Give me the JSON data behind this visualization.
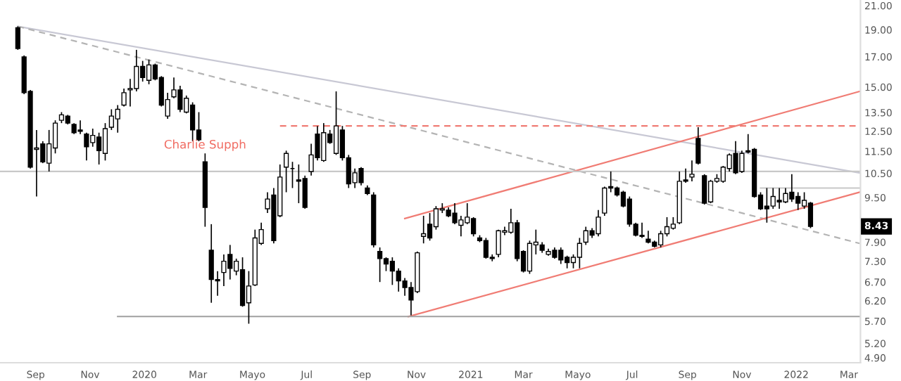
{
  "chart_data": {
    "type": "candlestick",
    "color": "#000000",
    "x": [
      "2019-08-12",
      "2019-08-19",
      "2019-08-26",
      "2019-09-02",
      "2019-09-09",
      "2019-09-16",
      "2019-09-23",
      "2019-09-30",
      "2019-10-07",
      "2019-10-14",
      "2019-10-21",
      "2019-10-28",
      "2019-11-04",
      "2019-11-11",
      "2019-11-18",
      "2019-11-25",
      "2019-12-02",
      "2019-12-09",
      "2019-12-16",
      "2019-12-23",
      "2019-12-30",
      "2020-01-06",
      "2020-01-13",
      "2020-01-20",
      "2020-01-27",
      "2020-02-03",
      "2020-02-10",
      "2020-02-17",
      "2020-02-24",
      "2020-03-02",
      "2020-03-09",
      "2020-03-16",
      "2020-03-23",
      "2020-03-30",
      "2020-04-06",
      "2020-04-13",
      "2020-04-20",
      "2020-04-27",
      "2020-05-04",
      "2020-05-11",
      "2020-05-18",
      "2020-05-25",
      "2020-06-01",
      "2020-06-08",
      "2020-06-15",
      "2020-06-22",
      "2020-06-29",
      "2020-07-06",
      "2020-07-13",
      "2020-07-20",
      "2020-07-27",
      "2020-08-03",
      "2020-08-10",
      "2020-08-17",
      "2020-08-24",
      "2020-08-31",
      "2020-09-07",
      "2020-09-14",
      "2020-09-21",
      "2020-09-28",
      "2020-10-05",
      "2020-10-12",
      "2020-10-19",
      "2020-10-26",
      "2020-11-02",
      "2020-11-09",
      "2020-11-16",
      "2020-11-23",
      "2020-11-30",
      "2020-12-07",
      "2020-12-14",
      "2020-12-21",
      "2020-12-28",
      "2021-01-04",
      "2021-01-11",
      "2021-01-18",
      "2021-01-25",
      "2021-02-01",
      "2021-02-08",
      "2021-02-15",
      "2021-02-22",
      "2021-03-01",
      "2021-03-08",
      "2021-03-15",
      "2021-03-22",
      "2021-03-29",
      "2021-04-05",
      "2021-04-12",
      "2021-04-19",
      "2021-04-26",
      "2021-05-03",
      "2021-05-10",
      "2021-05-17",
      "2021-05-24",
      "2021-05-31",
      "2021-06-07",
      "2021-06-14",
      "2021-06-21",
      "2021-06-28",
      "2021-07-05",
      "2021-07-12",
      "2021-07-19",
      "2021-07-26",
      "2021-08-02",
      "2021-08-09",
      "2021-08-16",
      "2021-08-23",
      "2021-08-30",
      "2021-09-06",
      "2021-09-13",
      "2021-09-20",
      "2021-09-27",
      "2021-10-04",
      "2021-10-11",
      "2021-10-18",
      "2021-10-25",
      "2021-11-01",
      "2021-11-08",
      "2021-11-15",
      "2021-11-22",
      "2021-11-29",
      "2021-12-06",
      "2021-12-13",
      "2021-12-20",
      "2021-12-27",
      "2022-01-03",
      "2022-01-10",
      "2022-01-17"
    ],
    "ohlc": [
      [
        19.16,
        19.27,
        17.49,
        17.59
      ],
      [
        16.99,
        17.09,
        14.56,
        14.65
      ],
      [
        14.73,
        14.82,
        10.71,
        10.77
      ],
      [
        11.59,
        12.56,
        9.54,
        11.66
      ],
      [
        11.86,
        11.99,
        10.95,
        11.01
      ],
      [
        10.95,
        12.56,
        10.58,
        11.86
      ],
      [
        11.66,
        13.07,
        11.4,
        12.92
      ],
      [
        13.07,
        13.52,
        12.92,
        13.37
      ],
      [
        13.3,
        13.37,
        12.85,
        12.92
      ],
      [
        12.85,
        12.92,
        12.35,
        12.42
      ],
      [
        12.56,
        13.07,
        12.35,
        12.49
      ],
      [
        12.35,
        12.42,
        11.07,
        11.72
      ],
      [
        11.92,
        12.63,
        11.72,
        12.28
      ],
      [
        12.2,
        12.42,
        10.89,
        11.53
      ],
      [
        11.4,
        12.92,
        11.07,
        12.63
      ],
      [
        12.7,
        13.68,
        12.56,
        13.3
      ],
      [
        13.15,
        13.92,
        12.42,
        13.68
      ],
      [
        13.92,
        14.9,
        13.84,
        14.65
      ],
      [
        14.82,
        15.51,
        13.84,
        14.9
      ],
      [
        14.9,
        17.49,
        14.73,
        16.33
      ],
      [
        16.33,
        16.71,
        15.34,
        15.6
      ],
      [
        15.42,
        16.8,
        15.17,
        16.43
      ],
      [
        16.43,
        16.52,
        15.42,
        15.51
      ],
      [
        15.6,
        15.69,
        13.84,
        13.92
      ],
      [
        13.3,
        14.65,
        13.15,
        14.24
      ],
      [
        14.4,
        15.6,
        14.32,
        14.82
      ],
      [
        14.82,
        15.08,
        13.52,
        13.68
      ],
      [
        13.52,
        14.48,
        13.45,
        14.32
      ],
      [
        13.92,
        14.08,
        11.99,
        12.56
      ],
      [
        12.56,
        13.52,
        11.99,
        12.06
      ],
      [
        11.01,
        11.4,
        8.42,
        9.12
      ],
      [
        7.64,
        8.51,
        6.15,
        6.77
      ],
      [
        6.77,
        7.01,
        6.33,
        6.73
      ],
      [
        6.97,
        7.51,
        6.59,
        7.3
      ],
      [
        7.51,
        7.81,
        6.77,
        7.09
      ],
      [
        7.01,
        7.38,
        6.89,
        7.3
      ],
      [
        7.05,
        7.42,
        6.05,
        6.08
      ],
      [
        6.15,
        7.01,
        5.64,
        6.59
      ],
      [
        6.62,
        8.32,
        6.59,
        8.04
      ],
      [
        7.86,
        8.56,
        7.81,
        8.32
      ],
      [
        9.07,
        9.71,
        8.91,
        9.44
      ],
      [
        9.6,
        9.88,
        7.86,
        7.95
      ],
      [
        8.81,
        10.89,
        8.76,
        10.34
      ],
      [
        10.77,
        11.53,
        9.71,
        11.4
      ],
      [
        10.71,
        11.01,
        9.88,
        10.71
      ],
      [
        10.22,
        10.89,
        9.28,
        10.16
      ],
      [
        10.28,
        10.4,
        9.07,
        9.12
      ],
      [
        10.58,
        11.86,
        10.4,
        11.33
      ],
      [
        12.35,
        12.77,
        11.07,
        11.2
      ],
      [
        11.07,
        12.92,
        11.01,
        12.42
      ],
      [
        12.35,
        12.56,
        11.86,
        11.92
      ],
      [
        11.4,
        14.73,
        11.33,
        12.77
      ],
      [
        12.56,
        12.77,
        11.07,
        11.2
      ],
      [
        11.2,
        11.33,
        9.88,
        10.05
      ],
      [
        10.1,
        10.71,
        9.88,
        10.52
      ],
      [
        10.71,
        10.77,
        9.99,
        10.1
      ],
      [
        9.88,
        9.99,
        9.6,
        9.66
      ],
      [
        9.6,
        9.71,
        7.73,
        7.81
      ],
      [
        7.6,
        7.73,
        6.7,
        7.38
      ],
      [
        7.38,
        7.42,
        7.01,
        7.22
      ],
      [
        7.3,
        7.42,
        6.62,
        7.01
      ],
      [
        7.01,
        7.09,
        6.44,
        6.73
      ],
      [
        6.73,
        6.81,
        6.33,
        6.55
      ],
      [
        6.55,
        6.7,
        5.84,
        6.22
      ],
      [
        6.44,
        7.6,
        6.4,
        7.56
      ],
      [
        8.09,
        8.81,
        7.86,
        8.18
      ],
      [
        8.51,
        8.91,
        7.95,
        8.04
      ],
      [
        8.42,
        9.17,
        8.32,
        9.07
      ],
      [
        9.02,
        9.28,
        8.91,
        9.07
      ],
      [
        9.02,
        9.12,
        8.76,
        8.81
      ],
      [
        8.91,
        9.28,
        8.51,
        8.56
      ],
      [
        8.47,
        8.81,
        8.09,
        8.66
      ],
      [
        8.56,
        9.28,
        8.51,
        8.76
      ],
      [
        8.71,
        8.76,
        8.09,
        8.18
      ],
      [
        8.04,
        8.13,
        7.9,
        7.95
      ],
      [
        7.95,
        8.04,
        7.38,
        7.42
      ],
      [
        7.42,
        7.51,
        7.3,
        7.38
      ],
      [
        7.51,
        8.32,
        7.42,
        8.28
      ],
      [
        8.23,
        8.42,
        8.13,
        8.28
      ],
      [
        8.23,
        9.07,
        8.18,
        8.56
      ],
      [
        8.56,
        8.66,
        7.3,
        7.38
      ],
      [
        7.6,
        7.64,
        6.97,
        7.01
      ],
      [
        7.01,
        7.95,
        6.93,
        7.86
      ],
      [
        7.81,
        8.32,
        7.51,
        7.9
      ],
      [
        7.81,
        7.9,
        7.56,
        7.64
      ],
      [
        7.51,
        7.69,
        7.47,
        7.6
      ],
      [
        7.64,
        7.73,
        7.38,
        7.42
      ],
      [
        7.64,
        7.73,
        7.22,
        7.34
      ],
      [
        7.42,
        7.47,
        7.09,
        7.26
      ],
      [
        7.26,
        7.51,
        7.09,
        7.42
      ],
      [
        7.42,
        8.04,
        7.09,
        7.86
      ],
      [
        7.9,
        8.42,
        7.81,
        8.28
      ],
      [
        8.28,
        8.37,
        8.04,
        8.13
      ],
      [
        8.18,
        9.02,
        8.09,
        8.76
      ],
      [
        8.91,
        9.94,
        8.81,
        9.88
      ],
      [
        9.94,
        10.58,
        9.71,
        9.88
      ],
      [
        9.88,
        9.94,
        9.54,
        9.6
      ],
      [
        9.71,
        9.77,
        9.12,
        9.17
      ],
      [
        9.44,
        9.54,
        8.42,
        8.51
      ],
      [
        8.51,
        8.56,
        8.09,
        8.13
      ],
      [
        8.13,
        8.56,
        8.04,
        8.09
      ],
      [
        8.0,
        8.28,
        7.86,
        7.9
      ],
      [
        7.9,
        7.95,
        7.73,
        7.77
      ],
      [
        7.81,
        8.28,
        7.73,
        8.18
      ],
      [
        8.18,
        8.76,
        8.09,
        8.42
      ],
      [
        8.37,
        8.76,
        8.32,
        8.51
      ],
      [
        8.56,
        10.58,
        8.51,
        10.16
      ],
      [
        10.22,
        10.71,
        10.1,
        10.16
      ],
      [
        10.34,
        11.07,
        10.16,
        10.46
      ],
      [
        12.13,
        12.7,
        10.89,
        10.95
      ],
      [
        10.4,
        10.46,
        9.23,
        9.28
      ],
      [
        9.33,
        10.22,
        9.28,
        10.16
      ],
      [
        10.16,
        10.46,
        10.1,
        10.28
      ],
      [
        10.16,
        10.83,
        10.1,
        10.77
      ],
      [
        10.71,
        11.4,
        10.58,
        11.33
      ],
      [
        11.4,
        11.99,
        10.46,
        10.52
      ],
      [
        10.58,
        11.53,
        10.52,
        11.4
      ],
      [
        11.53,
        12.35,
        11.4,
        11.46
      ],
      [
        11.59,
        11.66,
        9.49,
        9.54
      ],
      [
        9.6,
        9.71,
        9.02,
        9.07
      ],
      [
        9.17,
        9.88,
        8.56,
        9.07
      ],
      [
        9.17,
        9.88,
        9.07,
        9.54
      ],
      [
        9.39,
        9.88,
        9.07,
        9.33
      ],
      [
        9.33,
        9.88,
        9.28,
        9.66
      ],
      [
        9.71,
        10.46,
        9.33,
        9.44
      ],
      [
        9.54,
        9.71,
        9.02,
        9.28
      ],
      [
        9.17,
        9.71,
        9.07,
        9.39
      ],
      [
        9.28,
        9.33,
        8.37,
        8.43
      ]
    ],
    "series": [
      {
        "type": "line",
        "color": "#c8c8d4",
        "line_style": "solid",
        "x": [
          "2019-08-12",
          "2022-03-13"
        ],
        "values": [
          19.27,
          10.52
        ]
      },
      {
        "type": "line",
        "color": "#b4b4b4",
        "line_style": "dashed",
        "x": [
          "2019-08-12",
          "2022-03-13"
        ],
        "values": [
          19.27,
          7.86
        ]
      },
      {
        "type": "line",
        "color": "#f07c74",
        "line_style": "solid",
        "x": [
          "2020-10-19",
          "2022-03-13"
        ],
        "values": [
          8.71,
          14.73
        ]
      },
      {
        "type": "line",
        "color": "#f07c74",
        "line_style": "solid",
        "x": [
          "2020-10-23",
          "2022-03-13"
        ],
        "values": [
          5.81,
          9.71
        ]
      },
      {
        "type": "line",
        "color": "#f07c74",
        "line_style": "dashed",
        "x": [
          "2020-06-01",
          "2022-03-13"
        ],
        "values": [
          12.77,
          12.77
        ]
      },
      {
        "type": "line",
        "color": "#c8c8c8",
        "line_style": "solid",
        "x": [
          "2021-11-22",
          "2022-03-13"
        ],
        "values": [
          9.88,
          9.88
        ]
      },
      {
        "type": "line",
        "color": "#a0a0a0",
        "line_style": "solid",
        "x": [
          "2019-12-02",
          "2022-03-13"
        ],
        "values": [
          5.81,
          5.81
        ]
      }
    ],
    "ref_lines": [
      {
        "axis": "y",
        "value": 10.58,
        "color": "#c8c8c8"
      }
    ],
    "annotations": [
      {
        "text": "Charlie Supph",
        "x": "2020-03-09",
        "y": 11.79
      },
      {
        "text": "8.43",
        "y": 8.43
      }
    ],
    "log": true,
    "xlim": [
      "2019-07-23",
      "2022-03-14"
    ],
    "ylim": [
      4.8,
      21.49
    ],
    "xticks": [
      {
        "value": "2019-09-01",
        "label": "Sep"
      },
      {
        "value": "2019-11-01",
        "label": "Nov"
      },
      {
        "value": "2020-01-01",
        "label": "2020"
      },
      {
        "value": "2020-03-01",
        "label": "Mar"
      },
      {
        "value": "2020-05-01",
        "label": "Mayo"
      },
      {
        "value": "2020-07-01",
        "label": "Jul"
      },
      {
        "value": "2020-09-01",
        "label": "Sep"
      },
      {
        "value": "2020-11-01",
        "label": "Nov"
      },
      {
        "value": "2021-01-01",
        "label": "2021"
      },
      {
        "value": "2021-03-01",
        "label": "Mar"
      },
      {
        "value": "2021-05-01",
        "label": "Mayo"
      },
      {
        "value": "2021-07-01",
        "label": "Jul"
      },
      {
        "value": "2021-09-01",
        "label": "Sep"
      },
      {
        "value": "2021-11-01",
        "label": "Nov"
      },
      {
        "value": "2022-01-01",
        "label": "2022"
      },
      {
        "value": "2022-03-01",
        "label": "Mar"
      }
    ],
    "yticks": [
      {
        "value": 21,
        "label": "21.00"
      },
      {
        "value": 19,
        "label": "19.00"
      },
      {
        "value": 17,
        "label": "17.00"
      },
      {
        "value": 15,
        "label": "15.00"
      },
      {
        "value": 13.5,
        "label": "13.50"
      },
      {
        "value": 12.5,
        "label": "12.50"
      },
      {
        "value": 11.5,
        "label": "11.50"
      },
      {
        "value": 10.5,
        "label": "10.50"
      },
      {
        "value": 9.5,
        "label": "9.50"
      },
      {
        "value": 7.9,
        "label": "7.90"
      },
      {
        "value": 7.3,
        "label": "7.30"
      },
      {
        "value": 6.7,
        "label": "6.70"
      },
      {
        "value": 6.2,
        "label": "6.20"
      },
      {
        "value": 5.7,
        "label": "5.70"
      },
      {
        "value": 5.2,
        "label": "5.20"
      },
      {
        "value": 4.9,
        "label": "4.90"
      }
    ]
  }
}
